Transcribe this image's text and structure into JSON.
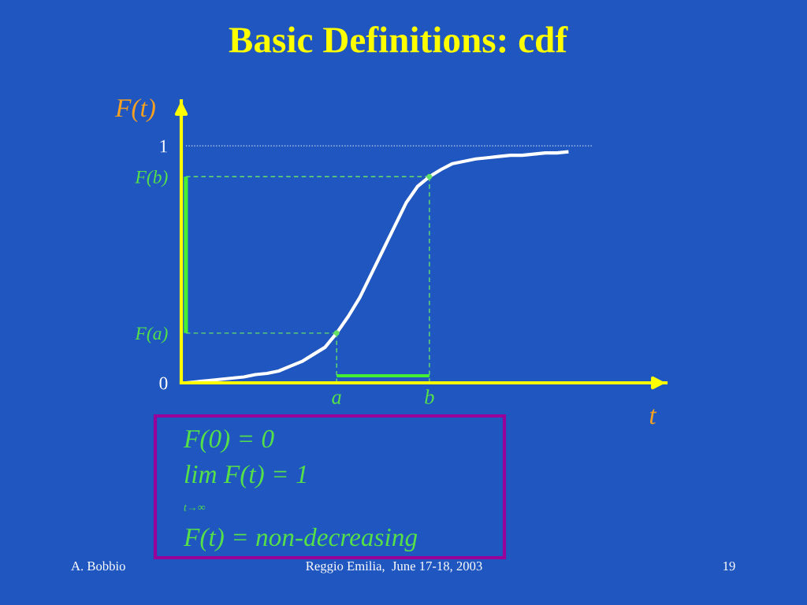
{
  "chart_data": {
    "type": "line",
    "title": "Basic Definitions: cdf",
    "xlabel": "t",
    "ylabel": "F(t)",
    "categories": [
      null,
      null,
      null,
      null,
      null,
      null,
      null,
      null,
      null,
      null,
      null,
      null,
      null,
      "a",
      null,
      null,
      null,
      null,
      null,
      null,
      null,
      "b",
      null,
      null,
      null,
      null,
      null,
      null,
      null,
      null,
      null,
      null,
      null,
      null,
      null,
      null,
      null,
      null,
      null,
      null,
      null,
      null
    ],
    "ylim": [
      0,
      1.19
    ],
    "yticks": [
      0,
      {
        "value": 0.21,
        "label": "F(a)"
      },
      {
        "value": 0.87,
        "label": "F(b)"
      },
      1
    ],
    "series": [
      {
        "color": "#c8d8f0",
        "line_style": "dotted",
        "values": [
          1,
          1,
          1,
          1,
          1,
          1,
          1,
          1,
          1,
          1,
          1,
          1,
          1,
          1,
          1,
          1,
          1,
          1,
          1,
          1,
          1,
          1,
          1,
          1,
          1,
          1,
          1,
          1,
          1,
          1,
          1,
          1,
          1,
          1,
          1,
          1,
          null,
          null,
          null,
          null,
          null,
          null
        ]
      },
      {
        "color": "#66e066",
        "line_style": "dashed",
        "values": [
          0.21,
          0.21,
          0.21,
          0.21,
          0.21,
          0.21,
          0.21,
          0.21,
          0.21,
          0.21,
          0.21,
          0.21,
          0.21,
          0.21,
          null,
          null,
          null,
          null,
          null,
          null,
          null,
          null,
          null,
          null,
          null,
          null,
          null,
          null,
          null,
          null,
          null,
          null,
          null,
          null,
          null,
          null,
          null,
          null,
          null,
          null,
          null,
          null
        ]
      },
      {
        "color": "#66e066",
        "line_style": "dashed",
        "values": [
          0.87,
          0.87,
          0.87,
          0.87,
          0.87,
          0.87,
          0.87,
          0.87,
          0.87,
          0.87,
          0.87,
          0.87,
          0.87,
          0.87,
          0.87,
          0.87,
          0.87,
          0.87,
          0.87,
          0.87,
          0.87,
          0.87,
          null,
          null,
          null,
          null,
          null,
          null,
          null,
          null,
          null,
          null,
          null,
          null,
          null,
          null,
          null,
          null,
          null,
          null,
          null,
          null
        ]
      },
      {
        "type": "bar",
        "color": "#44ee33",
        "base": [
          0.21,
          null,
          null,
          null,
          null,
          null,
          null,
          null,
          null,
          null,
          null,
          null,
          null,
          null,
          null,
          null,
          null,
          null,
          null,
          null,
          null,
          null,
          null,
          null,
          null,
          null,
          null,
          null,
          null,
          null,
          null,
          null,
          null,
          null,
          null,
          null,
          null,
          null,
          null,
          null,
          null,
          null
        ],
        "values": [
          0.66,
          null,
          null,
          null,
          null,
          null,
          null,
          null,
          null,
          null,
          null,
          null,
          null,
          null,
          null,
          null,
          null,
          null,
          null,
          null,
          null,
          null,
          null,
          null,
          null,
          null,
          null,
          null,
          null,
          null,
          null,
          null,
          null,
          null,
          null,
          null,
          null,
          null,
          null,
          null,
          null,
          null
        ]
      },
      {
        "color": "#44ee33",
        "values": [
          null,
          null,
          null,
          null,
          null,
          null,
          null,
          null,
          null,
          null,
          null,
          null,
          null,
          0.03,
          0.03,
          0.03,
          0.03,
          0.03,
          0.03,
          0.03,
          0.03,
          0.03,
          null,
          null,
          null,
          null,
          null,
          null,
          null,
          null,
          null,
          null,
          null,
          null,
          null,
          null,
          null,
          null,
          null,
          null,
          null,
          null
        ]
      },
      {
        "color": "#ffffff",
        "values": [
          0.0,
          0.005,
          0.01,
          0.015,
          0.02,
          0.025,
          0.035,
          0.04,
          0.05,
          0.07,
          0.09,
          0.12,
          0.15,
          0.21,
          0.28,
          0.36,
          0.46,
          0.56,
          0.66,
          0.76,
          0.83,
          0.87,
          0.9,
          0.925,
          0.935,
          0.945,
          0.95,
          0.955,
          0.96,
          0.96,
          0.965,
          0.97,
          0.97,
          0.975,
          null,
          null,
          null,
          null,
          null,
          null,
          null,
          null
        ]
      },
      {
        "type": "lollipop",
        "color": "#66e066",
        "line_style": "dashed",
        "marker": "circle",
        "values": [
          null,
          null,
          null,
          null,
          null,
          null,
          null,
          null,
          null,
          null,
          null,
          null,
          null,
          0.21,
          null,
          null,
          null,
          null,
          null,
          null,
          null,
          0.87,
          null,
          null,
          null,
          null,
          null,
          null,
          null,
          null,
          null,
          null,
          null,
          null,
          null,
          null,
          null,
          null,
          null,
          null,
          null,
          null
        ]
      }
    ],
    "annotations": [
      "F(0) = 0",
      "lim F(t) = 1",
      "t→∞",
      "F(t) = non-decreasing",
      "A. Bobbio",
      "Reggio Emilia,  June 17-18, 2003",
      "19"
    ]
  }
}
